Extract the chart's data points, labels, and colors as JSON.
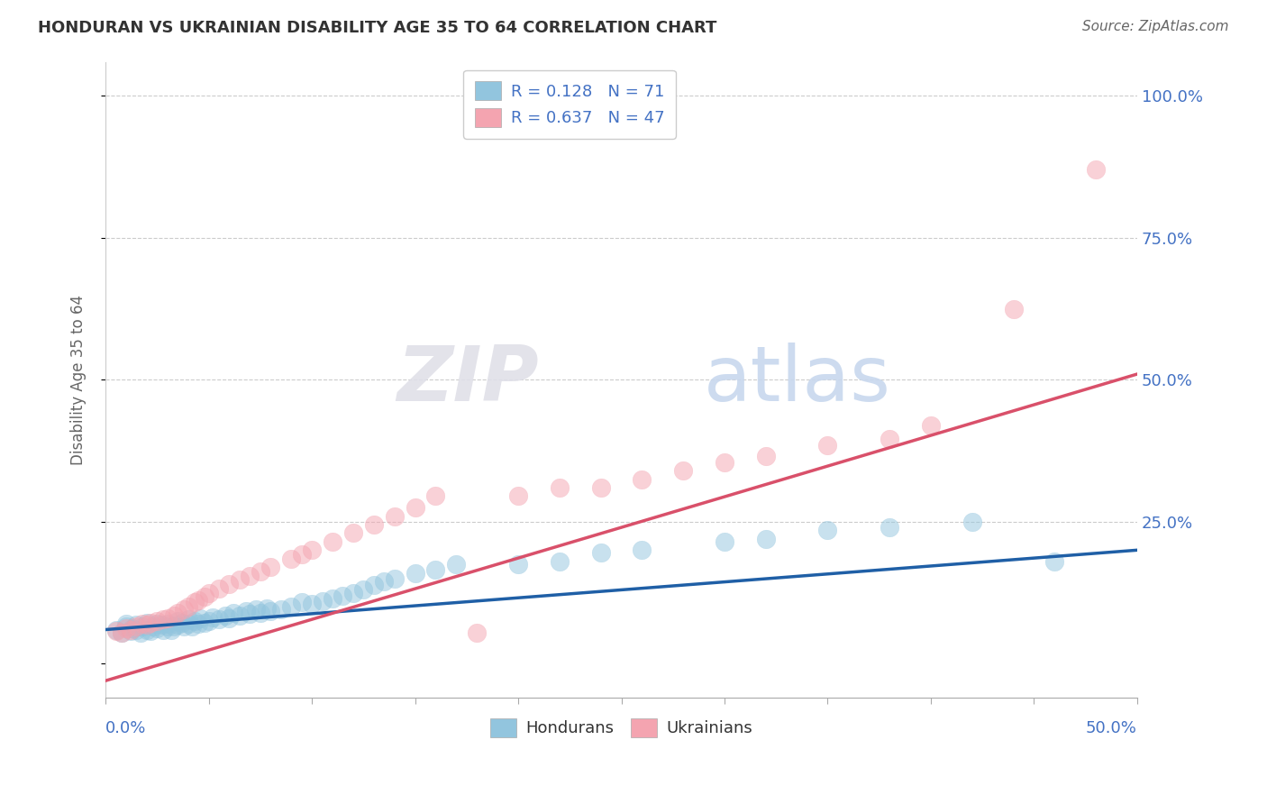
{
  "title": "HONDURAN VS UKRAINIAN DISABILITY AGE 35 TO 64 CORRELATION CHART",
  "source": "Source: ZipAtlas.com",
  "ylabel": "Disability Age 35 to 64",
  "xlim": [
    0.0,
    0.5
  ],
  "ylim": [
    -0.06,
    1.06
  ],
  "legend_r1": "0.128",
  "legend_n1": "71",
  "legend_r2": "0.637",
  "legend_n2": "47",
  "honduran_color": "#92c5de",
  "ukrainian_color": "#f4a4b0",
  "honduran_line_color": "#1f5fa6",
  "ukrainian_line_color": "#d9506a",
  "watermark_zip": "ZIP",
  "watermark_atlas": "atlas",
  "background_color": "#ffffff",
  "grid_color": "#cccccc",
  "hondurans_x": [
    0.005,
    0.008,
    0.01,
    0.01,
    0.012,
    0.013,
    0.015,
    0.015,
    0.017,
    0.018,
    0.02,
    0.02,
    0.022,
    0.023,
    0.025,
    0.025,
    0.027,
    0.028,
    0.03,
    0.03,
    0.032,
    0.033,
    0.035,
    0.035,
    0.037,
    0.038,
    0.04,
    0.04,
    0.042,
    0.043,
    0.045,
    0.046,
    0.048,
    0.05,
    0.052,
    0.055,
    0.058,
    0.06,
    0.062,
    0.065,
    0.068,
    0.07,
    0.073,
    0.075,
    0.078,
    0.08,
    0.085,
    0.09,
    0.095,
    0.1,
    0.105,
    0.11,
    0.115,
    0.12,
    0.125,
    0.13,
    0.135,
    0.14,
    0.15,
    0.16,
    0.17,
    0.2,
    0.22,
    0.24,
    0.26,
    0.3,
    0.32,
    0.35,
    0.38,
    0.42,
    0.46
  ],
  "hondurans_y": [
    0.06,
    0.055,
    0.065,
    0.07,
    0.058,
    0.062,
    0.06,
    0.068,
    0.055,
    0.065,
    0.06,
    0.072,
    0.058,
    0.065,
    0.07,
    0.062,
    0.068,
    0.06,
    0.065,
    0.07,
    0.06,
    0.065,
    0.075,
    0.068,
    0.072,
    0.065,
    0.07,
    0.078,
    0.065,
    0.075,
    0.07,
    0.08,
    0.072,
    0.075,
    0.082,
    0.078,
    0.085,
    0.08,
    0.09,
    0.085,
    0.092,
    0.088,
    0.095,
    0.09,
    0.098,
    0.092,
    0.095,
    0.1,
    0.108,
    0.105,
    0.11,
    0.115,
    0.12,
    0.125,
    0.13,
    0.138,
    0.145,
    0.15,
    0.16,
    0.165,
    0.175,
    0.175,
    0.18,
    0.195,
    0.2,
    0.215,
    0.22,
    0.235,
    0.24,
    0.25,
    0.18
  ],
  "ukrainians_x": [
    0.005,
    0.008,
    0.01,
    0.012,
    0.015,
    0.018,
    0.02,
    0.022,
    0.025,
    0.028,
    0.03,
    0.033,
    0.035,
    0.038,
    0.04,
    0.043,
    0.045,
    0.048,
    0.05,
    0.055,
    0.06,
    0.065,
    0.07,
    0.075,
    0.08,
    0.09,
    0.095,
    0.1,
    0.11,
    0.12,
    0.13,
    0.14,
    0.15,
    0.16,
    0.18,
    0.2,
    0.22,
    0.24,
    0.26,
    0.28,
    0.3,
    0.32,
    0.35,
    0.38,
    0.4,
    0.44,
    0.48
  ],
  "ukrainians_y": [
    0.058,
    0.055,
    0.062,
    0.06,
    0.065,
    0.07,
    0.068,
    0.072,
    0.075,
    0.078,
    0.08,
    0.085,
    0.09,
    0.095,
    0.1,
    0.108,
    0.112,
    0.118,
    0.125,
    0.132,
    0.14,
    0.148,
    0.155,
    0.162,
    0.17,
    0.185,
    0.192,
    0.2,
    0.215,
    0.23,
    0.245,
    0.26,
    0.275,
    0.295,
    0.055,
    0.295,
    0.31,
    0.31,
    0.325,
    0.34,
    0.355,
    0.365,
    0.385,
    0.395,
    0.42,
    0.625,
    0.87
  ],
  "honduran_line_x0": 0.0,
  "honduran_line_y0": 0.06,
  "honduran_line_x1": 0.5,
  "honduran_line_y1": 0.2,
  "ukrainian_line_x0": 0.0,
  "ukrainian_line_y0": -0.03,
  "ukrainian_line_x1": 0.5,
  "ukrainian_line_y1": 0.51
}
